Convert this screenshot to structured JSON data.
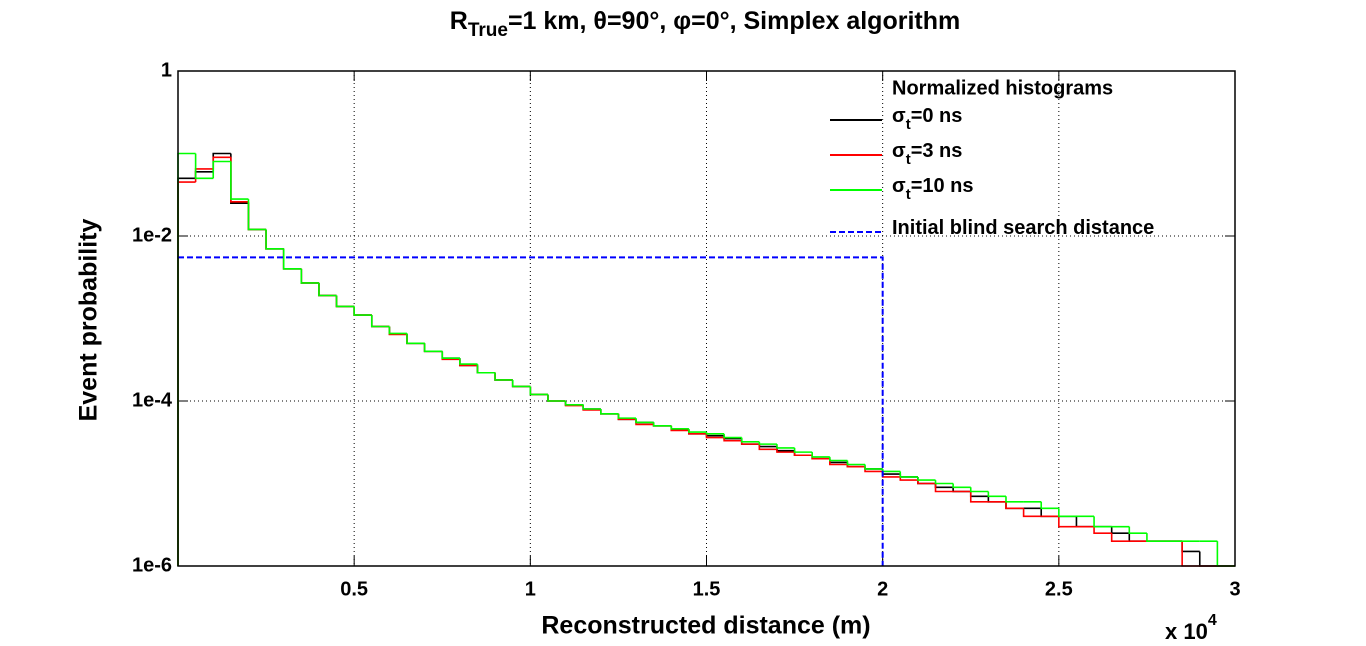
{
  "chart_data": {
    "type": "histogram",
    "title": {
      "main": "R",
      "sub": "True",
      "rest": "=1 km, θ=90°, φ=0°, Simplex algorithm"
    },
    "xlabel": "Reconstructed distance (m)",
    "ylabel": "Event probability",
    "x_multiplier": {
      "base": "x 10",
      "exponent": "4"
    },
    "legend_title": "Normalized histograms",
    "legend": "upper right",
    "grid": true,
    "yscale": "log",
    "xlim": [
      0,
      30000
    ],
    "ylim": [
      1e-06,
      1
    ],
    "xticks": [
      {
        "value": 5000,
        "label": "0.5"
      },
      {
        "value": 10000,
        "label": "1"
      },
      {
        "value": 15000,
        "label": "1.5"
      },
      {
        "value": 20000,
        "label": "2"
      },
      {
        "value": 25000,
        "label": "2.5"
      },
      {
        "value": 30000,
        "label": "3"
      }
    ],
    "yticks": [
      {
        "value": 1e-06,
        "label": "1e-6"
      },
      {
        "value": 0.0001,
        "label": "1e-4"
      },
      {
        "value": 0.01,
        "label": "1e-2"
      },
      1
    ],
    "bins": [
      0,
      500,
      1000,
      1500,
      2000,
      2500,
      3000,
      3500,
      4000,
      4500,
      5000,
      5500,
      6000,
      6500,
      7000,
      7500,
      8000,
      8500,
      9000,
      9500,
      10000,
      10500,
      11000,
      11500,
      12000,
      12500,
      13000,
      13500,
      14000,
      14500,
      15000,
      15500,
      16000,
      16500,
      17000,
      17500,
      18000,
      18500,
      19000,
      19500,
      20000,
      20500,
      21000,
      21500,
      22000,
      22500,
      23000,
      23500,
      24000,
      24500,
      25000,
      25500,
      26000,
      26500,
      27000,
      27500,
      28000,
      28500,
      29000,
      29500,
      30000
    ],
    "series": [
      {
        "name": [
          "σ",
          "t",
          "=0 ns"
        ],
        "color": "#000000",
        "values": [
          0.05,
          0.06,
          0.1,
          0.025,
          0.012,
          0.007,
          0.004,
          0.0027,
          0.0019,
          0.0014,
          0.0011,
          0.0008,
          0.00065,
          0.0005,
          0.0004,
          0.00033,
          0.00027,
          0.00022,
          0.00018,
          0.00015,
          0.00012,
          0.0001,
          9e-05,
          8e-05,
          7e-05,
          6e-05,
          5.5e-05,
          5e-05,
          4.5e-05,
          4e-05,
          3.8e-05,
          3.5e-05,
          3e-05,
          2.8e-05,
          2.5e-05,
          2.2e-05,
          2e-05,
          1.8e-05,
          1.6e-05,
          1.5e-05,
          1.3e-05,
          1.2e-05,
          1e-05,
          9e-06,
          8e-06,
          7e-06,
          6e-06,
          5e-06,
          5e-06,
          4e-06,
          4e-06,
          3e-06,
          3e-06,
          2.5e-06,
          2e-06,
          2e-06,
          2e-06,
          1.5e-06,
          0,
          0
        ]
      },
      {
        "name": [
          "σ",
          "t",
          "=3 ns"
        ],
        "color": "#ff0000",
        "values": [
          0.045,
          0.065,
          0.09,
          0.026,
          0.012,
          0.007,
          0.004,
          0.0027,
          0.0019,
          0.0014,
          0.0011,
          0.0008,
          0.00064,
          0.0005,
          0.0004,
          0.00032,
          0.00027,
          0.00022,
          0.00018,
          0.00015,
          0.00012,
          0.0001,
          8.8e-05,
          7.8e-05,
          7e-05,
          6e-05,
          5.2e-05,
          5e-05,
          4.4e-05,
          4e-05,
          3.6e-05,
          3.3e-05,
          3e-05,
          2.6e-05,
          2.4e-05,
          2.2e-05,
          2e-05,
          1.7e-05,
          1.6e-05,
          1.4e-05,
          1.2e-05,
          1.1e-05,
          1e-05,
          8e-06,
          8e-06,
          6e-06,
          6e-06,
          5e-06,
          4e-06,
          4e-06,
          3e-06,
          3e-06,
          2.5e-06,
          2e-06,
          2e-06,
          2e-06,
          2e-06,
          0,
          0,
          0
        ]
      },
      {
        "name": [
          "σ",
          "t",
          "=10 ns"
        ],
        "color": "#00ff00",
        "values": [
          0.1,
          0.05,
          0.08,
          0.028,
          0.012,
          0.007,
          0.004,
          0.0027,
          0.0019,
          0.0014,
          0.0011,
          0.0008,
          0.00066,
          0.0005,
          0.0004,
          0.00033,
          0.00028,
          0.00022,
          0.00018,
          0.00015,
          0.00012,
          0.0001,
          9e-05,
          8e-05,
          7e-05,
          6.2e-05,
          5.5e-05,
          5e-05,
          4.6e-05,
          4.2e-05,
          4e-05,
          3.6e-05,
          3.2e-05,
          3e-05,
          2.7e-05,
          2.4e-05,
          2.1e-05,
          1.9e-05,
          1.7e-05,
          1.5e-05,
          1.4e-05,
          1.2e-05,
          1.1e-05,
          1e-05,
          9e-06,
          8e-06,
          7e-06,
          6e-06,
          6e-06,
          5e-06,
          4e-06,
          4e-06,
          3e-06,
          3e-06,
          2.5e-06,
          2e-06,
          2e-06,
          2e-06,
          2e-06,
          0
        ]
      },
      {
        "name": [
          "Initial blind search distance"
        ],
        "color": "#0000ff",
        "type": "line",
        "dashed": true,
        "x": [
          0,
          20000,
          20000
        ],
        "values": [
          0.0055,
          0.0055,
          1e-06
        ]
      }
    ]
  }
}
